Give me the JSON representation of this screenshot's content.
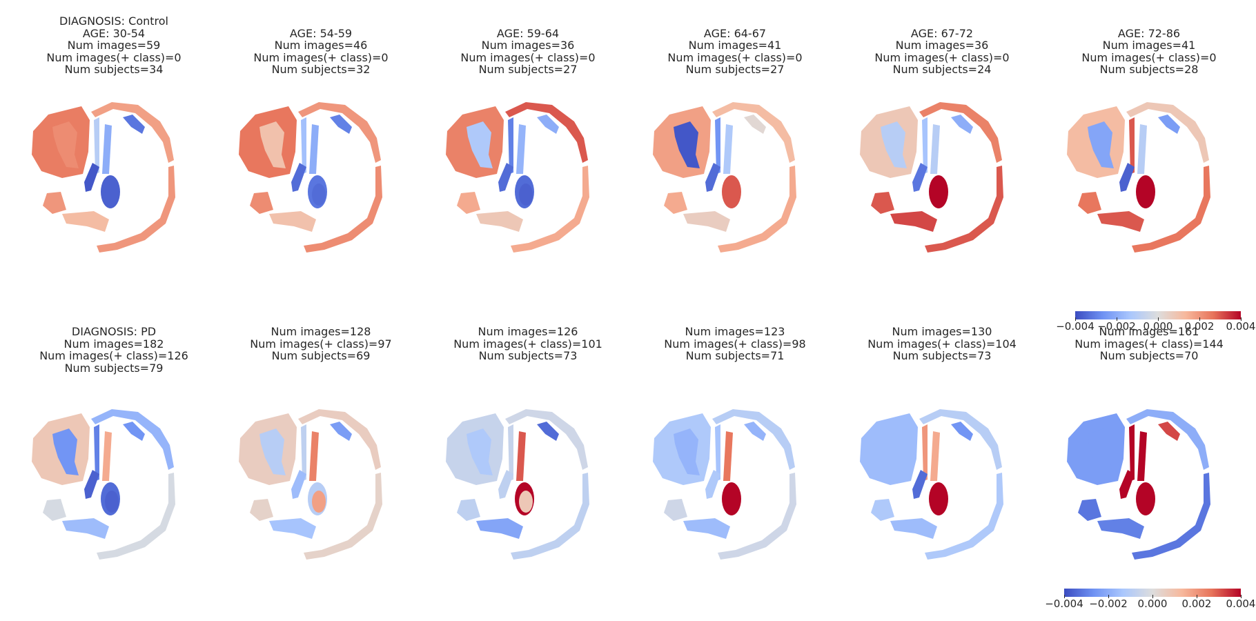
{
  "colormap": {
    "name": "coolwarm",
    "stops": [
      "#3b4cc0",
      "#6f92f3",
      "#aac7fd",
      "#dddddd",
      "#f7b89c",
      "#e7745b",
      "#b40426"
    ],
    "range": [
      -0.004,
      0.004
    ]
  },
  "rows": [
    {
      "row_label": "DIAGNOSIS: Control",
      "panels": [
        {
          "age": "AGE: 30-54",
          "num_images": "Num images=59",
          "num_pos": "Num images(+ class)=0",
          "num_subjects": "Num subjects=34"
        },
        {
          "age": "AGE: 54-59",
          "num_images": "Num images=46",
          "num_pos": "Num images(+ class)=0",
          "num_subjects": "Num subjects=32"
        },
        {
          "age": "AGE: 59-64",
          "num_images": "Num images=36",
          "num_pos": "Num images(+ class)=0",
          "num_subjects": "Num subjects=27"
        },
        {
          "age": "AGE: 64-67",
          "num_images": "Num images=41",
          "num_pos": "Num images(+ class)=0",
          "num_subjects": "Num subjects=27"
        },
        {
          "age": "AGE: 67-72",
          "num_images": "Num images=36",
          "num_pos": "Num images(+ class)=0",
          "num_subjects": "Num subjects=24"
        },
        {
          "age": "AGE: 72-86",
          "num_images": "Num images=41",
          "num_pos": "Num images(+ class)=0",
          "num_subjects": "Num subjects=28"
        }
      ]
    },
    {
      "row_label": "DIAGNOSIS: PD",
      "panels": [
        {
          "num_images": "Num images=182",
          "num_pos": "Num images(+ class)=126",
          "num_subjects": "Num subjects=79"
        },
        {
          "num_images": "Num images=128",
          "num_pos": "Num images(+ class)=97",
          "num_subjects": "Num subjects=69"
        },
        {
          "num_images": "Num images=126",
          "num_pos": "Num images(+ class)=101",
          "num_subjects": "Num subjects=73"
        },
        {
          "num_images": "Num images=123",
          "num_pos": "Num images(+ class)=98",
          "num_subjects": "Num subjects=71"
        },
        {
          "num_images": "Num images=130",
          "num_pos": "Num images(+ class)=104",
          "num_subjects": "Num subjects=73"
        },
        {
          "num_images": "Num images=161",
          "num_pos": "Num images(+ class)=144",
          "num_subjects": "Num subjects=70"
        }
      ]
    }
  ],
  "colorbar": {
    "ticks": [
      -0.004,
      -0.002,
      0.0,
      0.002,
      0.004
    ],
    "tick_labels": [
      "−0.004",
      "−0.002",
      "0.000",
      "0.002",
      "0.004"
    ]
  },
  "region_values": [
    [
      {
        "cerebellum": 0.0025,
        "cerebellum_inner": 0.0022,
        "cortex_front": 0.0018,
        "cortex_back": 0.002,
        "caudate": -0.0038,
        "putamen": -0.0036,
        "thalamus": -0.0036,
        "ventricle_strip": -0.001,
        "insula": -0.002,
        "brainstem": 0.0012,
        "frontal_gyrus": -0.0032
      },
      {
        "cerebellum": 0.0026,
        "cerebellum_inner": 0.001,
        "cortex_front": 0.002,
        "cortex_back": 0.0022,
        "caudate": -0.0034,
        "putamen": -0.0032,
        "thalamus": -0.0034,
        "ventricle_strip": -0.0015,
        "insula": -0.002,
        "brainstem": 0.001,
        "frontal_gyrus": -0.003
      },
      {
        "cerebellum": 0.0024,
        "cerebellum_inner": -0.0012,
        "cortex_front": 0.003,
        "cortex_back": 0.0016,
        "caudate": -0.0034,
        "putamen": -0.0034,
        "thalamus": -0.0036,
        "ventricle_strip": -0.003,
        "insula": -0.0018,
        "brainstem": 0.0008,
        "frontal_gyrus": -0.002
      },
      {
        "cerebellum": 0.0018,
        "cerebellum_inner": -0.0038,
        "cortex_front": 0.0012,
        "cortex_back": 0.0016,
        "caudate": -0.0034,
        "putamen": 0.003,
        "thalamus": 0.003,
        "ventricle_strip": -0.0026,
        "insula": -0.0012,
        "brainstem": 0.0006,
        "frontal_gyrus": 0.0002
      },
      {
        "cerebellum": 0.0008,
        "cerebellum_inner": -0.001,
        "cortex_front": 0.0024,
        "cortex_back": 0.003,
        "caudate": -0.0032,
        "putamen": 0.004,
        "thalamus": 0.004,
        "ventricle_strip": -0.0014,
        "insula": -0.001,
        "brainstem": 0.0032,
        "frontal_gyrus": -0.002
      },
      {
        "cerebellum": 0.0012,
        "cerebellum_inner": -0.0022,
        "cortex_front": 0.0008,
        "cortex_back": 0.0026,
        "caudate": -0.0036,
        "putamen": 0.004,
        "thalamus": 0.004,
        "ventricle_strip": 0.003,
        "insula": -0.001,
        "brainstem": 0.003,
        "frontal_gyrus": -0.0024
      }
    ],
    [
      {
        "cerebellum": 0.0008,
        "cerebellum_inner": -0.0026,
        "cortex_front": -0.0018,
        "cortex_back": -0.0002,
        "caudate": -0.0036,
        "putamen": -0.0034,
        "thalamus": -0.0036,
        "ventricle_strip": -0.003,
        "insula": 0.0016,
        "brainstem": -0.0016,
        "frontal_gyrus": -0.0026
      },
      {
        "cerebellum": 0.0006,
        "cerebellum_inner": -0.001,
        "cortex_front": 0.0006,
        "cortex_back": 0.0004,
        "caudate": -0.0016,
        "putamen": -0.001,
        "thalamus": 0.0018,
        "ventricle_strip": -0.0008,
        "insula": 0.0024,
        "brainstem": -0.0014,
        "frontal_gyrus": -0.0024
      },
      {
        "cerebellum": -0.0006,
        "cerebellum_inner": -0.0012,
        "cortex_front": -0.0004,
        "cortex_back": -0.0008,
        "caudate": -0.0008,
        "putamen": 0.004,
        "thalamus": 0.0008,
        "ventricle_strip": -0.0006,
        "insula": 0.003,
        "brainstem": -0.0022,
        "frontal_gyrus": -0.0034
      },
      {
        "cerebellum": -0.0012,
        "cerebellum_inner": -0.0018,
        "cortex_front": -0.001,
        "cortex_back": -0.0004,
        "caudate": -0.0012,
        "putamen": 0.004,
        "thalamus": 0.004,
        "ventricle_strip": -0.0014,
        "insula": 0.0026,
        "brainstem": -0.0016,
        "frontal_gyrus": -0.0018
      },
      {
        "cerebellum": -0.0016,
        "cerebellum_inner": -0.0016,
        "cortex_front": -0.001,
        "cortex_back": -0.0012,
        "caudate": -0.0034,
        "putamen": 0.004,
        "thalamus": 0.004,
        "ventricle_strip": 0.002,
        "insula": 0.0016,
        "brainstem": -0.0016,
        "frontal_gyrus": -0.0026
      },
      {
        "cerebellum": -0.0024,
        "cerebellum_inner": -0.0024,
        "cortex_front": -0.002,
        "cortex_back": -0.0032,
        "caudate": 0.004,
        "putamen": 0.004,
        "thalamus": 0.004,
        "ventricle_strip": 0.004,
        "insula": 0.004,
        "brainstem": -0.003,
        "frontal_gyrus": 0.0032
      }
    ]
  ]
}
